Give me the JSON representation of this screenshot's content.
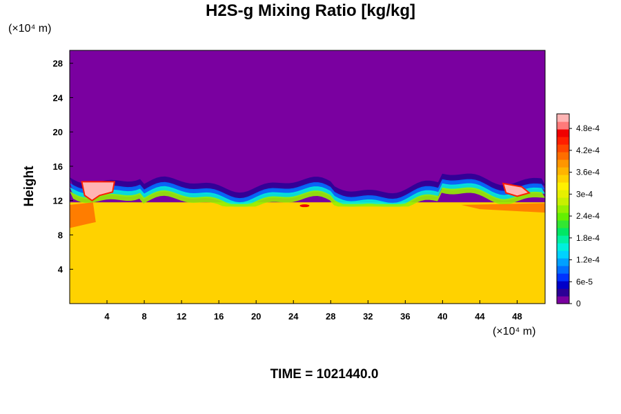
{
  "chart_data": {
    "type": "heatmap",
    "title": "H2S-g Mixing Ratio [kg/kg]",
    "ylabel": "Height",
    "x_unit": "(×10⁴ m)",
    "y_unit": "(×10⁴ m)",
    "time_label": "TIME = 1021440.0",
    "x_ticks": [
      4,
      8,
      12,
      16,
      20,
      24,
      28,
      32,
      36,
      40,
      44,
      48
    ],
    "y_ticks": [
      4,
      8,
      12,
      16,
      20,
      24,
      28
    ],
    "xlim": [
      0,
      51
    ],
    "ylim": [
      0,
      29.5
    ],
    "colorbar": {
      "range": [
        0,
        0.00052
      ],
      "labels": [
        {
          "value": 0,
          "text": "0"
        },
        {
          "value": 6e-05,
          "text": "6e-5"
        },
        {
          "value": 0.00012,
          "text": "1.2e-4"
        },
        {
          "value": 0.00018,
          "text": "1.8e-4"
        },
        {
          "value": 0.00024,
          "text": "2.4e-4"
        },
        {
          "value": 0.0003,
          "text": "3e-4"
        },
        {
          "value": 0.00036,
          "text": "3.6e-4"
        },
        {
          "value": 0.00042,
          "text": "4.2e-4"
        },
        {
          "value": 0.00048,
          "text": "4.8e-4"
        }
      ],
      "colors": [
        "#7a00a0",
        "#2b0096",
        "#0000c8",
        "#0032ff",
        "#006eff",
        "#00a0ff",
        "#00d2ff",
        "#00f0dc",
        "#00f0a0",
        "#00e664",
        "#32e632",
        "#64f000",
        "#96f000",
        "#c8f000",
        "#e6f000",
        "#fff000",
        "#ffd200",
        "#ffb400",
        "#ff9600",
        "#ff6e00",
        "#ff4600",
        "#ff1e00",
        "#f00000",
        "#ff7a7a",
        "#ffb4b4"
      ]
    },
    "field_description_levels": {
      "upper_region_value": 0,
      "lower_region_value": 0.000345,
      "interface_height": 13
    }
  }
}
